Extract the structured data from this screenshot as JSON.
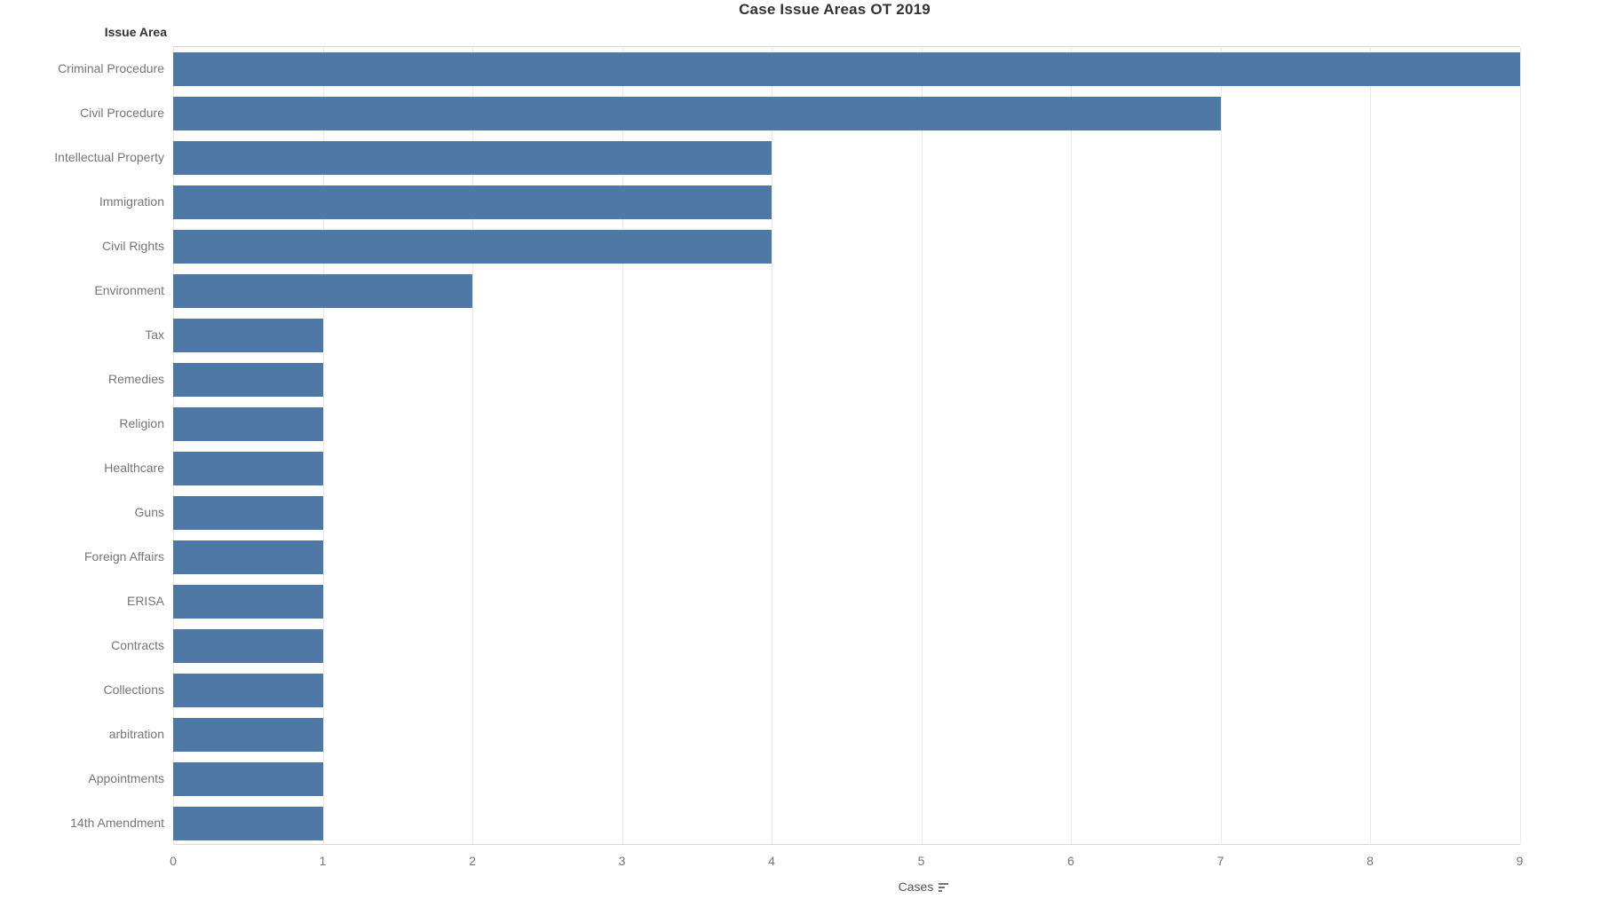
{
  "title": "Case Issue Areas OT 2019",
  "row_axis_title": "Issue Area",
  "x_axis": {
    "title": "Cases",
    "sort_icon": "sort-descending-icon",
    "ticks": [
      0,
      1,
      2,
      3,
      4,
      5,
      6,
      7,
      8,
      9
    ]
  },
  "colors": {
    "bar": "#4e79a7",
    "gridline": "#e9e9e9",
    "axis_border": "#d8d8d8",
    "title_text": "#323232",
    "label_text": "#767676",
    "axis_title_text": "#555555"
  },
  "chart_data": {
    "type": "bar",
    "orientation": "horizontal",
    "title": "Case Issue Areas OT 2019",
    "xlabel": "Cases",
    "ylabel": "Issue Area",
    "categories": [
      "Criminal Procedure",
      "Civil Procedure",
      "Intellectual Property",
      "Immigration",
      "Civil Rights",
      "Environment",
      "Tax",
      "Remedies",
      "Religion",
      "Healthcare",
      "Guns",
      "Foreign Affairs",
      "ERISA",
      "Contracts",
      "Collections",
      "arbitration",
      "Appointments",
      "14th Amendment"
    ],
    "values": [
      9,
      7,
      4,
      4,
      4,
      2,
      1,
      1,
      1,
      1,
      1,
      1,
      1,
      1,
      1,
      1,
      1,
      1
    ],
    "xlim": [
      0,
      9.6
    ],
    "xticks": [
      0,
      1,
      2,
      3,
      4,
      5,
      6,
      7,
      8,
      9
    ],
    "grid": true,
    "legend": false,
    "sort": "descending",
    "bar_color": "#4e79a7"
  }
}
